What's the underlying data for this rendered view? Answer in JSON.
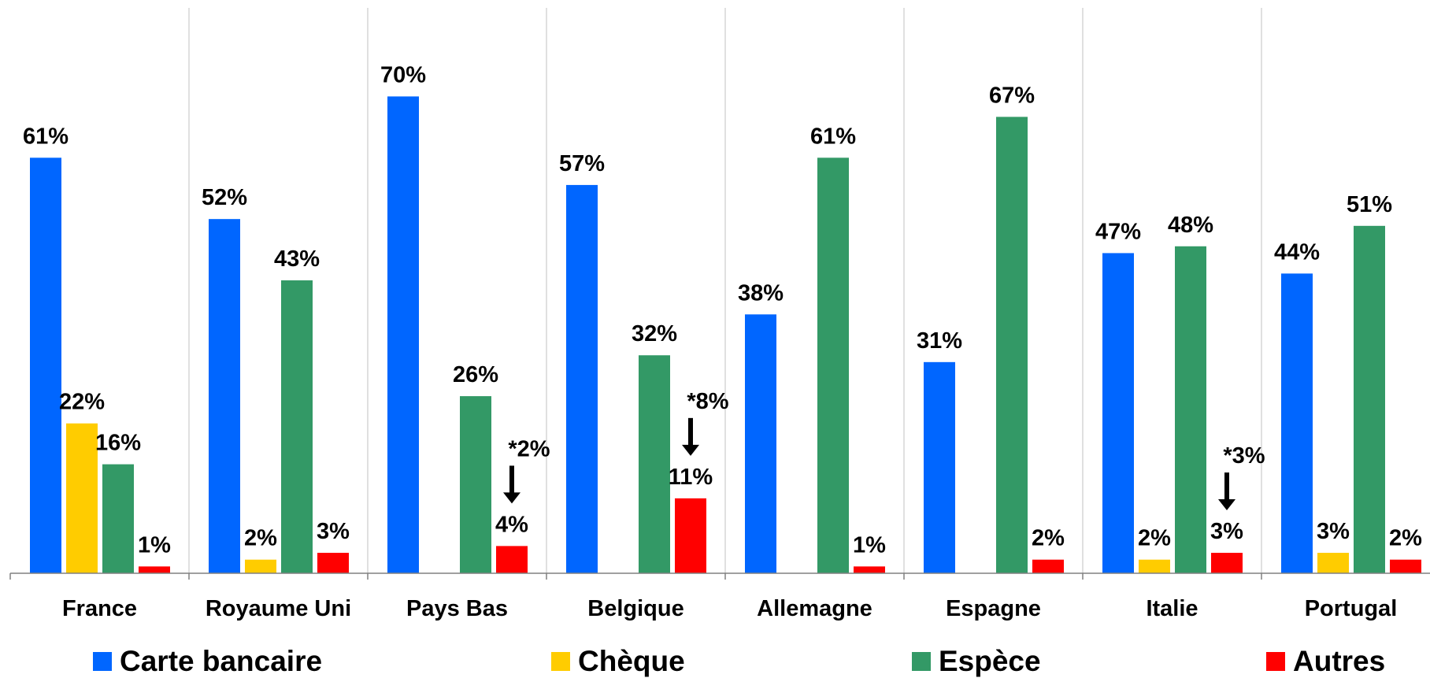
{
  "colors": {
    "Carte bancaire": "#0066ff",
    "Chèque": "#ffcc00",
    "Espèce": "#339966",
    "Autres": "#ff0000"
  },
  "chart_data": {
    "type": "bar",
    "categories": [
      "France",
      "Royaume Uni",
      "Pays Bas",
      "Belgique",
      "Allemagne",
      "Espagne",
      "Italie",
      "Portugal"
    ],
    "series": [
      {
        "name": "Carte bancaire",
        "values": [
          61,
          52,
          70,
          57,
          38,
          31,
          47,
          44
        ],
        "labels": [
          "61%",
          "52%",
          "70%",
          "57%",
          "38%",
          "31%",
          "47%",
          "44%"
        ]
      },
      {
        "name": "Chèque",
        "values": [
          22,
          2,
          null,
          null,
          null,
          null,
          2,
          3
        ],
        "labels": [
          "22%",
          "2%",
          null,
          null,
          null,
          null,
          "2%",
          "3%"
        ]
      },
      {
        "name": "Espèce",
        "values": [
          16,
          43,
          26,
          32,
          61,
          67,
          48,
          51
        ],
        "labels": [
          "16%",
          "43%",
          "26%",
          "32%",
          "61%",
          "67%",
          "48%",
          "51%"
        ]
      },
      {
        "name": "Autres",
        "values": [
          1,
          3,
          4,
          11,
          1,
          2,
          3,
          2
        ],
        "labels": [
          "1%",
          "3%",
          "4%",
          "11%",
          "1%",
          "2%",
          "3%",
          "2%"
        ]
      }
    ],
    "annotations": [
      {
        "category": "Pays Bas",
        "series": "Autres",
        "text": "*2%"
      },
      {
        "category": "Belgique",
        "series": "Autres",
        "text": "*8%"
      },
      {
        "category": "Italie",
        "series": "Autres",
        "text": "*3%"
      }
    ],
    "ylim": [
      0,
      83
    ],
    "grid": "vertical category separators",
    "legend": "bottom"
  }
}
